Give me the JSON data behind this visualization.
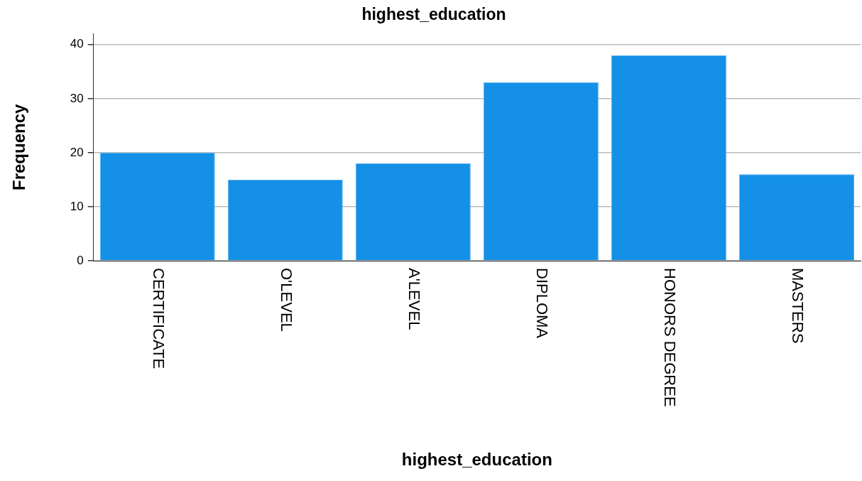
{
  "chart_data": {
    "type": "bar",
    "title": "highest_education",
    "xlabel": "highest_education",
    "ylabel": "Frequency",
    "categories": [
      "CERTIFICATE",
      "O'LEVEL",
      "A'LEVEL",
      "DIPLOMA",
      "HONORS DEGREE",
      "MASTERS"
    ],
    "values": [
      20,
      15,
      18,
      33,
      38,
      16
    ],
    "color": "#1490e6",
    "ylim": [
      0,
      42
    ],
    "yticks": [
      0,
      10,
      20,
      30,
      40
    ],
    "grid": "y",
    "legend": false
  }
}
